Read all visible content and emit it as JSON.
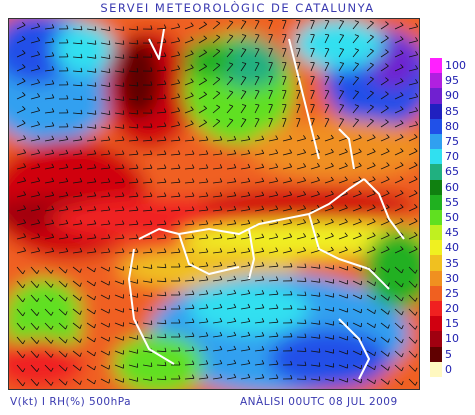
{
  "title": "SERVEI METEOROLÒGIC DE CATALUNYA",
  "footer_left": "V(kt) I RH(%) 500hPa",
  "footer_right": "ANÀLISI 00UTC 08 JUL 2009",
  "legend": {
    "levels": [
      {
        "label": "100",
        "color": "#ff20ff"
      },
      {
        "label": "95",
        "color": "#b020e0"
      },
      {
        "label": "90",
        "color": "#7020d0"
      },
      {
        "label": "85",
        "color": "#2020c0"
      },
      {
        "label": "80",
        "color": "#2050e8"
      },
      {
        "label": "75",
        "color": "#30a0f0"
      },
      {
        "label": "70",
        "color": "#30e0f0"
      },
      {
        "label": "65",
        "color": "#20b080"
      },
      {
        "label": "60",
        "color": "#108010"
      },
      {
        "label": "55",
        "color": "#20b020"
      },
      {
        "label": "50",
        "color": "#60e020"
      },
      {
        "label": "45",
        "color": "#c0f020"
      },
      {
        "label": "40",
        "color": "#f0f020"
      },
      {
        "label": "35",
        "color": "#f0c020"
      },
      {
        "label": "30",
        "color": "#f09020"
      },
      {
        "label": "25",
        "color": "#f06020"
      },
      {
        "label": "20",
        "color": "#f02020"
      },
      {
        "label": "15",
        "color": "#d00010"
      },
      {
        "label": "10",
        "color": "#a00010"
      },
      {
        "label": "5",
        "color": "#600000"
      },
      {
        "label": "0",
        "color": "#fff8c0"
      }
    ]
  }
}
